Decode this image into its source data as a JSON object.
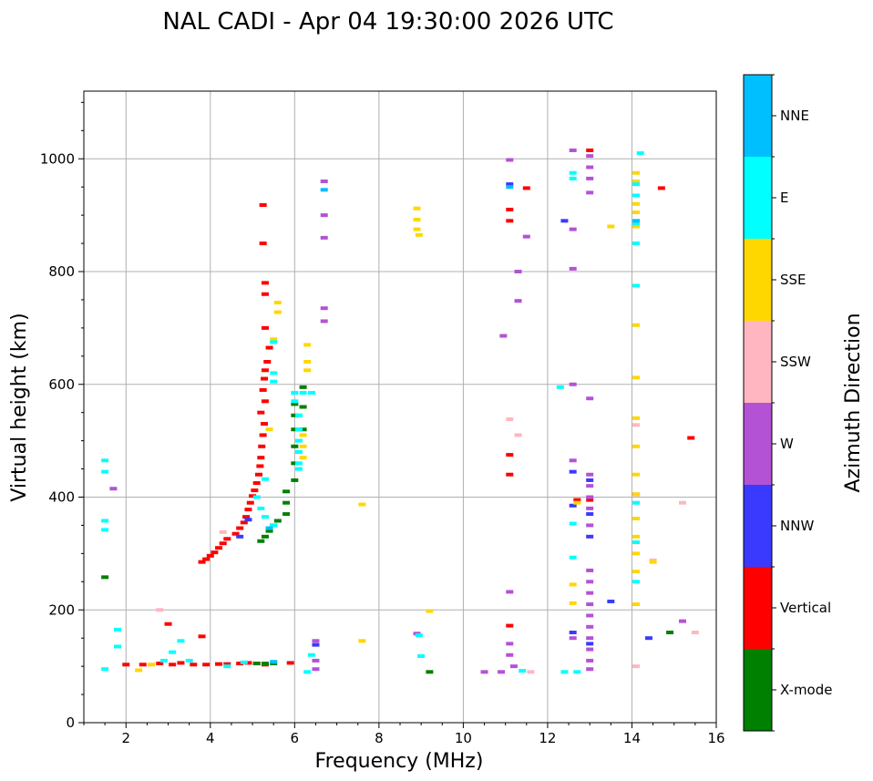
{
  "chart_data": {
    "type": "scatter",
    "title": "NAL CADI - Apr 04 19:30:00 2026 UTC",
    "xlabel": "Frequency (MHz)",
    "ylabel": "Virtual height (km)",
    "xlim": [
      1,
      16
    ],
    "ylim": [
      0,
      1120
    ],
    "xticks": [
      2,
      4,
      6,
      8,
      10,
      12,
      14,
      16
    ],
    "yticks": [
      0,
      200,
      400,
      600,
      800,
      1000
    ],
    "grid": true,
    "colorbar": {
      "label": "Azimuth Direction",
      "categories": [
        {
          "name": "X-mode",
          "color": "#008000"
        },
        {
          "name": "Vertical",
          "color": "#ff0000"
        },
        {
          "name": "NNW",
          "color": "#3a3aff"
        },
        {
          "name": "W",
          "color": "#b452d6"
        },
        {
          "name": "SSW",
          "color": "#ffb6c1"
        },
        {
          "name": "SSE",
          "color": "#ffd700"
        },
        {
          "name": "E",
          "color": "#00ffff"
        },
        {
          "name": "NNE",
          "color": "#00bfff"
        }
      ]
    },
    "series": [
      {
        "name": "Vertical",
        "color": "#ff0000",
        "points": [
          [
            2.0,
            103
          ],
          [
            2.4,
            103
          ],
          [
            2.8,
            105
          ],
          [
            3.1,
            103
          ],
          [
            3.3,
            106
          ],
          [
            3.6,
            103
          ],
          [
            3.9,
            103
          ],
          [
            4.2,
            104
          ],
          [
            4.4,
            104
          ],
          [
            4.7,
            105
          ],
          [
            4.9,
            106
          ],
          [
            5.1,
            105
          ],
          [
            5.3,
            103
          ],
          [
            5.9,
            106
          ],
          [
            3.8,
            285
          ],
          [
            3.9,
            290
          ],
          [
            4.0,
            296
          ],
          [
            4.1,
            302
          ],
          [
            4.2,
            310
          ],
          [
            4.3,
            318
          ],
          [
            4.4,
            326
          ],
          [
            4.6,
            335
          ],
          [
            4.7,
            345
          ],
          [
            4.8,
            355
          ],
          [
            4.85,
            365
          ],
          [
            4.9,
            378
          ],
          [
            4.95,
            390
          ],
          [
            5.0,
            402
          ],
          [
            5.05,
            412
          ],
          [
            5.1,
            425
          ],
          [
            5.15,
            440
          ],
          [
            5.18,
            455
          ],
          [
            5.2,
            470
          ],
          [
            5.22,
            490
          ],
          [
            5.25,
            510
          ],
          [
            5.28,
            530
          ],
          [
            5.2,
            550
          ],
          [
            5.3,
            570
          ],
          [
            5.25,
            590
          ],
          [
            5.28,
            610
          ],
          [
            5.3,
            625
          ],
          [
            5.35,
            640
          ],
          [
            5.4,
            665
          ],
          [
            5.3,
            700
          ],
          [
            5.3,
            760
          ],
          [
            5.3,
            780
          ],
          [
            5.25,
            850
          ],
          [
            5.25,
            918
          ],
          [
            3.0,
            175
          ],
          [
            3.8,
            153
          ],
          [
            11.1,
            890
          ],
          [
            11.1,
            910
          ],
          [
            11.5,
            948
          ],
          [
            11.1,
            440
          ],
          [
            11.1,
            475
          ],
          [
            11.1,
            172
          ],
          [
            12.7,
            395
          ],
          [
            13.0,
            395
          ],
          [
            13.0,
            1015
          ],
          [
            14.1,
            405
          ],
          [
            14.7,
            948
          ],
          [
            15.4,
            505
          ]
        ]
      },
      {
        "name": "X-mode",
        "color": "#008000",
        "points": [
          [
            5.1,
            105
          ],
          [
            5.3,
            105
          ],
          [
            5.5,
            105
          ],
          [
            5.2,
            322
          ],
          [
            5.3,
            330
          ],
          [
            5.4,
            340
          ],
          [
            5.5,
            350
          ],
          [
            5.6,
            358
          ],
          [
            5.8,
            370
          ],
          [
            5.8,
            390
          ],
          [
            5.8,
            410
          ],
          [
            6.0,
            430
          ],
          [
            6.0,
            460
          ],
          [
            6.0,
            490
          ],
          [
            6.0,
            520
          ],
          [
            6.0,
            545
          ],
          [
            6.0,
            565
          ],
          [
            6.2,
            595
          ],
          [
            6.2,
            520
          ],
          [
            6.2,
            560
          ],
          [
            9.2,
            90
          ],
          [
            14.9,
            160
          ],
          [
            1.5,
            258
          ]
        ]
      },
      {
        "name": "NNW",
        "color": "#3a3aff",
        "points": [
          [
            6.5,
            138
          ],
          [
            11.1,
            955
          ],
          [
            12.4,
            890
          ],
          [
            12.6,
            445
          ],
          [
            12.6,
            385
          ],
          [
            12.6,
            160
          ],
          [
            13.0,
            430
          ],
          [
            13.0,
            370
          ],
          [
            13.0,
            330
          ],
          [
            13.0,
            140
          ],
          [
            13.5,
            215
          ],
          [
            14.4,
            150
          ],
          [
            4.9,
            360
          ],
          [
            4.7,
            330
          ]
        ]
      },
      {
        "name": "W",
        "color": "#b452d6",
        "points": [
          [
            1.7,
            415
          ],
          [
            6.7,
            960
          ],
          [
            6.7,
            900
          ],
          [
            6.7,
            860
          ],
          [
            6.7,
            735
          ],
          [
            6.7,
            712
          ],
          [
            6.5,
            145
          ],
          [
            6.5,
            110
          ],
          [
            6.5,
            95
          ],
          [
            8.9,
            158
          ],
          [
            10.5,
            90
          ],
          [
            10.9,
            90
          ],
          [
            10.95,
            686
          ],
          [
            11.1,
            998
          ],
          [
            11.3,
            800
          ],
          [
            11.3,
            748
          ],
          [
            11.5,
            862
          ],
          [
            11.1,
            232
          ],
          [
            11.1,
            140
          ],
          [
            11.1,
            120
          ],
          [
            11.2,
            100
          ],
          [
            12.6,
            1015
          ],
          [
            12.6,
            875
          ],
          [
            12.6,
            805
          ],
          [
            12.6,
            600
          ],
          [
            12.6,
            465
          ],
          [
            12.6,
            150
          ],
          [
            13.0,
            1005
          ],
          [
            13.0,
            985
          ],
          [
            13.0,
            965
          ],
          [
            13.0,
            940
          ],
          [
            13.0,
            575
          ],
          [
            13.0,
            440
          ],
          [
            13.0,
            420
          ],
          [
            13.0,
            400
          ],
          [
            13.0,
            380
          ],
          [
            13.0,
            350
          ],
          [
            13.0,
            270
          ],
          [
            13.0,
            250
          ],
          [
            13.0,
            230
          ],
          [
            13.0,
            210
          ],
          [
            13.0,
            190
          ],
          [
            13.0,
            170
          ],
          [
            13.0,
            150
          ],
          [
            13.0,
            130
          ],
          [
            13.0,
            110
          ],
          [
            13.0,
            95
          ],
          [
            15.2,
            180
          ]
        ]
      },
      {
        "name": "SSW",
        "color": "#ffb6c1",
        "points": [
          [
            2.8,
            200
          ],
          [
            4.3,
            338
          ],
          [
            11.1,
            538
          ],
          [
            11.3,
            510
          ],
          [
            11.6,
            90
          ],
          [
            14.5,
            288
          ],
          [
            14.1,
            100
          ],
          [
            15.2,
            390
          ],
          [
            15.5,
            160
          ],
          [
            14.1,
            528
          ]
        ]
      },
      {
        "name": "SSE",
        "color": "#ffd700",
        "points": [
          [
            5.6,
            745
          ],
          [
            5.6,
            728
          ],
          [
            5.5,
            680
          ],
          [
            6.3,
            670
          ],
          [
            6.3,
            640
          ],
          [
            6.3,
            625
          ],
          [
            6.2,
            510
          ],
          [
            6.2,
            490
          ],
          [
            6.2,
            470
          ],
          [
            5.4,
            520
          ],
          [
            2.3,
            93
          ],
          [
            2.6,
            103
          ],
          [
            7.6,
            387
          ],
          [
            7.6,
            145
          ],
          [
            8.9,
            912
          ],
          [
            8.9,
            892
          ],
          [
            8.9,
            875
          ],
          [
            8.95,
            865
          ],
          [
            9.2,
            198
          ],
          [
            12.6,
            245
          ],
          [
            12.6,
            212
          ],
          [
            12.7,
            390
          ],
          [
            13.5,
            880
          ],
          [
            14.1,
            975
          ],
          [
            14.1,
            960
          ],
          [
            14.1,
            920
          ],
          [
            14.1,
            905
          ],
          [
            14.1,
            880
          ],
          [
            14.1,
            705
          ],
          [
            14.1,
            612
          ],
          [
            14.1,
            540
          ],
          [
            14.1,
            490
          ],
          [
            14.1,
            440
          ],
          [
            14.1,
            405
          ],
          [
            14.1,
            362
          ],
          [
            14.1,
            330
          ],
          [
            14.1,
            300
          ],
          [
            14.1,
            268
          ],
          [
            14.1,
            210
          ],
          [
            14.5,
            285
          ]
        ]
      },
      {
        "name": "E",
        "color": "#00ffff",
        "points": [
          [
            1.5,
            465
          ],
          [
            1.5,
            445
          ],
          [
            1.5,
            358
          ],
          [
            1.5,
            342
          ],
          [
            1.5,
            95
          ],
          [
            1.8,
            165
          ],
          [
            1.8,
            135
          ],
          [
            2.9,
            110
          ],
          [
            3.1,
            125
          ],
          [
            3.3,
            145
          ],
          [
            3.5,
            110
          ],
          [
            4.4,
            100
          ],
          [
            4.8,
            107
          ],
          [
            5.5,
            675
          ],
          [
            5.5,
            620
          ],
          [
            5.5,
            605
          ],
          [
            5.3,
            432
          ],
          [
            5.1,
            400
          ],
          [
            5.2,
            380
          ],
          [
            5.3,
            365
          ],
          [
            5.5,
            350
          ],
          [
            6.0,
            585
          ],
          [
            6.0,
            570
          ],
          [
            6.2,
            585
          ],
          [
            6.4,
            585
          ],
          [
            6.1,
            545
          ],
          [
            6.1,
            520
          ],
          [
            6.1,
            500
          ],
          [
            6.1,
            480
          ],
          [
            6.1,
            460
          ],
          [
            6.1,
            450
          ],
          [
            6.4,
            120
          ],
          [
            6.3,
            90
          ],
          [
            8.95,
            155
          ],
          [
            9.0,
            118
          ],
          [
            11.4,
            92
          ],
          [
            12.6,
            975
          ],
          [
            12.6,
            965
          ],
          [
            12.3,
            595
          ],
          [
            12.6,
            293
          ],
          [
            12.6,
            353
          ],
          [
            12.4,
            90
          ],
          [
            12.7,
            90
          ],
          [
            14.2,
            1010
          ],
          [
            14.1,
            955
          ],
          [
            14.1,
            935
          ],
          [
            14.1,
            885
          ],
          [
            14.1,
            850
          ],
          [
            14.1,
            775
          ],
          [
            14.1,
            390
          ],
          [
            14.1,
            320
          ],
          [
            14.1,
            250
          ]
        ]
      },
      {
        "name": "NNE",
        "color": "#00bfff",
        "points": [
          [
            5.5,
            108
          ],
          [
            6.7,
            945
          ],
          [
            11.1,
            950
          ],
          [
            14.1,
            890
          ],
          [
            5.4,
            345
          ]
        ]
      }
    ]
  }
}
